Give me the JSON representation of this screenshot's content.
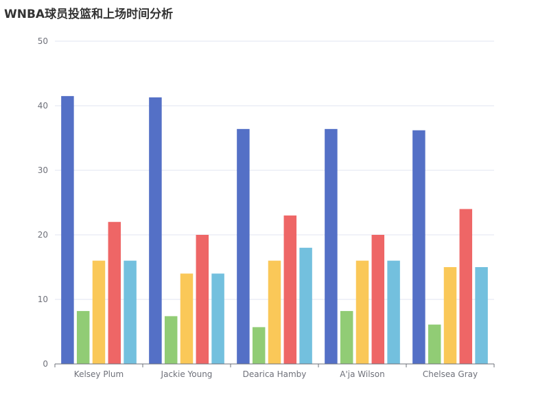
{
  "chart_data": {
    "type": "bar",
    "title": "WNBA球员投篮和上场时间分析",
    "categories": [
      "Kelsey Plum",
      "Jackie Young",
      "Dearica Hamby",
      "A'ja Wilson",
      "Chelsea Gray"
    ],
    "series": [
      {
        "color": "#5470c6",
        "values": [
          41.5,
          41.3,
          36.4,
          36.4,
          36.2
        ]
      },
      {
        "color": "#91cc75",
        "values": [
          8.2,
          7.4,
          5.7,
          8.2,
          6.1
        ]
      },
      {
        "color": "#fac858",
        "values": [
          16,
          14,
          16,
          16,
          15
        ]
      },
      {
        "color": "#ee6666",
        "values": [
          22,
          20,
          23,
          20,
          24
        ]
      },
      {
        "color": "#73c0de",
        "values": [
          16,
          14,
          18,
          16,
          15
        ]
      }
    ],
    "yticks": [
      "0",
      "10",
      "20",
      "30",
      "40",
      "50"
    ],
    "ylim": [
      0,
      50
    ],
    "xlabel": "",
    "ylabel": "",
    "grid": true,
    "legend": "none"
  }
}
